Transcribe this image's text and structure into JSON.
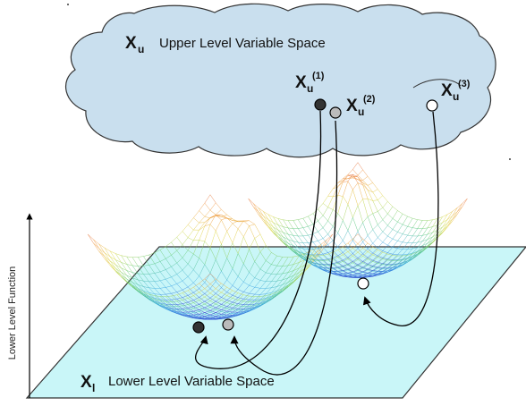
{
  "upper_space": {
    "symbol": "X",
    "subscript": "u",
    "label": "Upper Level Variable Space",
    "fill_color": "#c9dfee"
  },
  "lower_space": {
    "symbol": "X",
    "subscript": "l",
    "label": "Lower Level Variable Space",
    "fill_color": "#c9f6f8"
  },
  "y_axis": {
    "label": "Lower Level Function"
  },
  "upper_points": [
    {
      "symbol": "X",
      "subscript": "u",
      "superscript": "(1)",
      "color": "#333333"
    },
    {
      "symbol": "X",
      "subscript": "u",
      "superscript": "(2)",
      "color": "#bbbbbb"
    },
    {
      "symbol": "X",
      "subscript": "u",
      "superscript": "(3)",
      "color": "#ffffff"
    }
  ]
}
